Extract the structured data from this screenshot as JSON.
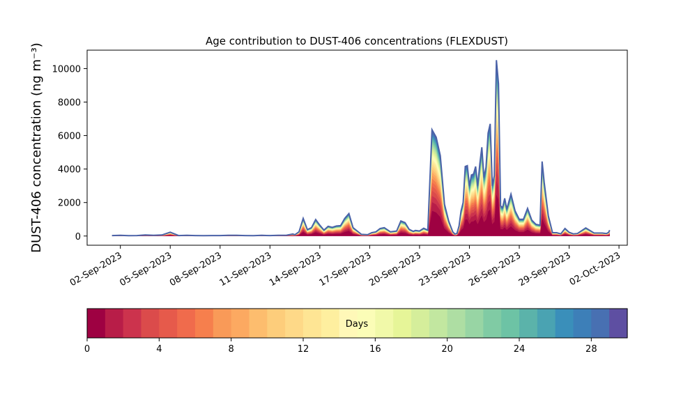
{
  "chart_data": {
    "type": "area",
    "stacked": true,
    "title": "Age contribution to DUST-406 concentrations (FLEXDUST)",
    "ylabel": "DUST-406 concentration (ng m⁻³)",
    "xlabel": "",
    "xlim": [
      "2023-08-31T00:00",
      "2023-10-02T12:00"
    ],
    "ylim": [
      -550,
      11100
    ],
    "x_ticks": [
      {
        "x": "2023-09-02",
        "label": "02-Sep-2023"
      },
      {
        "x": "2023-09-05",
        "label": "05-Sep-2023"
      },
      {
        "x": "2023-09-08",
        "label": "08-Sep-2023"
      },
      {
        "x": "2023-09-11",
        "label": "11-Sep-2023"
      },
      {
        "x": "2023-09-14",
        "label": "14-Sep-2023"
      },
      {
        "x": "2023-09-17",
        "label": "17-Sep-2023"
      },
      {
        "x": "2023-09-20",
        "label": "20-Sep-2023"
      },
      {
        "x": "2023-09-23",
        "label": "23-Sep-2023"
      },
      {
        "x": "2023-09-26",
        "label": "26-Sep-2023"
      },
      {
        "x": "2023-09-29",
        "label": "29-Sep-2023"
      },
      {
        "x": "2023-10-02",
        "label": "02-Oct-2023"
      }
    ],
    "y_ticks": [
      {
        "y": 0,
        "label": "0"
      },
      {
        "y": 2000,
        "label": "2000"
      },
      {
        "y": 4000,
        "label": "4000"
      },
      {
        "y": 6000,
        "label": "6000"
      },
      {
        "y": 8000,
        "label": "8000"
      },
      {
        "y": 10000,
        "label": "10000"
      }
    ],
    "grid": false,
    "total_concentration": {
      "x": [
        "2023-09-01T12:00",
        "2023-09-02T00:00",
        "2023-09-02T12:00",
        "2023-09-03T00:00",
        "2023-09-03T12:00",
        "2023-09-04T00:00",
        "2023-09-04T12:00",
        "2023-09-05T00:00",
        "2023-09-05T12:00",
        "2023-09-06T00:00",
        "2023-09-06T12:00",
        "2023-09-07T00:00",
        "2023-09-07T12:00",
        "2023-09-08T00:00",
        "2023-09-08T12:00",
        "2023-09-09T00:00",
        "2023-09-09T12:00",
        "2023-09-10T00:00",
        "2023-09-10T12:00",
        "2023-09-11T00:00",
        "2023-09-11T12:00",
        "2023-09-12T00:00",
        "2023-09-12T09:00",
        "2023-09-12T12:00",
        "2023-09-12T18:00",
        "2023-09-13T00:00",
        "2023-09-13T06:00",
        "2023-09-13T12:00",
        "2023-09-13T18:00",
        "2023-09-14T00:00",
        "2023-09-14T06:00",
        "2023-09-14T12:00",
        "2023-09-14T18:00",
        "2023-09-15T00:00",
        "2023-09-15T06:00",
        "2023-09-15T12:00",
        "2023-09-15T18:00",
        "2023-09-16T00:00",
        "2023-09-16T12:00",
        "2023-09-16T21:00",
        "2023-09-17T03:00",
        "2023-09-17T09:00",
        "2023-09-17T15:00",
        "2023-09-17T21:00",
        "2023-09-18T06:00",
        "2023-09-18T15:00",
        "2023-09-18T21:00",
        "2023-09-19T03:00",
        "2023-09-19T09:00",
        "2023-09-19T15:00",
        "2023-09-19T18:00",
        "2023-09-20T00:00",
        "2023-09-20T06:00",
        "2023-09-20T12:00",
        "2023-09-20T18:00",
        "2023-09-21T00:00",
        "2023-09-21T06:00",
        "2023-09-21T12:00",
        "2023-09-21T18:00",
        "2023-09-22T00:00",
        "2023-09-22T03:00",
        "2023-09-22T06:00",
        "2023-09-22T09:00",
        "2023-09-22T12:00",
        "2023-09-22T15:00",
        "2023-09-22T18:00",
        "2023-09-22T21:00",
        "2023-09-23T00:00",
        "2023-09-23T03:00",
        "2023-09-23T06:00",
        "2023-09-23T09:00",
        "2023-09-23T12:00",
        "2023-09-23T15:00",
        "2023-09-23T18:00",
        "2023-09-23T21:00",
        "2023-09-24T00:00",
        "2023-09-24T03:00",
        "2023-09-24T06:00",
        "2023-09-24T09:00",
        "2023-09-24T12:00",
        "2023-09-24T15:00",
        "2023-09-24T18:00",
        "2023-09-24T21:00",
        "2023-09-25T00:00",
        "2023-09-25T03:00",
        "2023-09-25T06:00",
        "2023-09-25T12:00",
        "2023-09-25T18:00",
        "2023-09-26T00:00",
        "2023-09-26T06:00",
        "2023-09-26T12:00",
        "2023-09-26T18:00",
        "2023-09-27T00:00",
        "2023-09-27T06:00",
        "2023-09-27T09:00",
        "2023-09-27T12:00",
        "2023-09-27T18:00",
        "2023-09-28T00:00",
        "2023-09-28T06:00",
        "2023-09-28T12:00",
        "2023-09-28T18:00",
        "2023-09-29T00:00",
        "2023-09-29T06:00",
        "2023-09-29T12:00",
        "2023-09-30T00:00",
        "2023-09-30T12:00",
        "2023-10-01T00:00",
        "2023-10-01T06:00",
        "2023-10-01T09:00",
        "2023-10-01T10:30"
      ],
      "y": [
        30,
        40,
        20,
        30,
        60,
        40,
        60,
        230,
        30,
        40,
        30,
        20,
        30,
        30,
        40,
        40,
        30,
        20,
        40,
        30,
        40,
        50,
        120,
        80,
        250,
        1050,
        380,
        500,
        980,
        650,
        350,
        580,
        520,
        600,
        620,
        1050,
        1340,
        500,
        100,
        80,
        200,
        250,
        450,
        500,
        250,
        300,
        900,
        800,
        400,
        280,
        330,
        300,
        460,
        350,
        6350,
        5900,
        4800,
        1900,
        900,
        250,
        120,
        150,
        600,
        1500,
        2000,
        4150,
        4200,
        3000,
        3650,
        3700,
        4150,
        3000,
        4300,
        5300,
        3500,
        4100,
        6150,
        6700,
        3000,
        3600,
        10500,
        9100,
        1800,
        1700,
        2250,
        1600,
        2500,
        1500,
        1000,
        1000,
        1650,
        950,
        700,
        650,
        4450,
        3200,
        1200,
        200,
        200,
        130,
        450,
        220,
        130,
        150,
        480,
        180,
        180,
        150,
        220,
        350
      ]
    },
    "age_colormap": {
      "label": "Days",
      "min": 0,
      "max": 30,
      "ticks": [
        0,
        4,
        8,
        12,
        16,
        20,
        24,
        28
      ],
      "colors": [
        "#9e0142",
        "#b81d48",
        "#cc334d",
        "#db4b4b",
        "#e65a4b",
        "#f06b4c",
        "#f67f4d",
        "#f99a58",
        "#fca961",
        "#fdbd6e",
        "#fdcd7b",
        "#fed988",
        "#fee594",
        "#feef9f",
        "#fff8b8",
        "#fbfdb7",
        "#f1f9a9",
        "#e6f598",
        "#d5ee9b",
        "#c2e7a0",
        "#aedea3",
        "#98d5a4",
        "#80cba4",
        "#6dc3a5",
        "#5bb3aa",
        "#4aa3b2",
        "#3a8fba",
        "#3d7fb8",
        "#4870b2",
        "#5e4fa2"
      ]
    }
  }
}
